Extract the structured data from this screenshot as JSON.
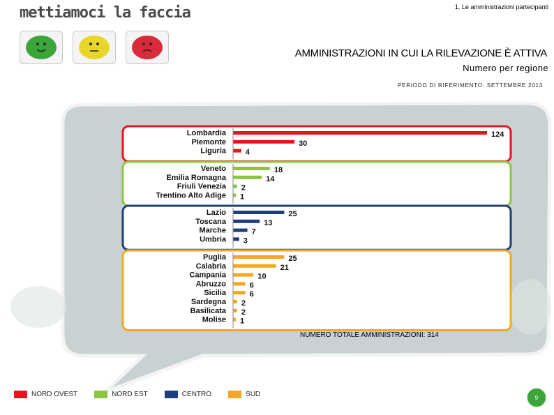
{
  "header": {
    "logo_text": "mettiamoci la faccia",
    "section_label": "1. Le amministrazioni partecipanti",
    "title": "AMMINISTRAZIONI IN CUI LA RILEVAZIONE È ATTIVA",
    "subtitle": "Numero per regione",
    "period": "PERIODO DI RIFERIMENTO: SETTEMBRE 2013"
  },
  "smileys": [
    {
      "name": "green-smiley-icon",
      "color": "#3aa63a"
    },
    {
      "name": "yellow-smiley-icon",
      "color": "#e8d62a"
    },
    {
      "name": "red-smiley-icon",
      "color": "#d92a3a"
    }
  ],
  "chart_data": {
    "type": "bar",
    "orientation": "horizontal",
    "xlim": [
      0,
      124
    ],
    "groups": [
      {
        "name": "NORD OVEST",
        "color": "#e3161e",
        "categories": [
          "Lombardia",
          "Piemonte",
          "Liguria"
        ],
        "values": [
          124,
          30,
          4
        ]
      },
      {
        "name": "NORD EST",
        "color": "#8cc63f",
        "categories": [
          "Veneto",
          "Emilia Romagna",
          "Friuli Venezia",
          "Trentino Alto Adige"
        ],
        "values": [
          18,
          14,
          2,
          1
        ]
      },
      {
        "name": "CENTRO",
        "color": "#1f3f7a",
        "categories": [
          "Lazio",
          "Toscana",
          "Marche",
          "Umbria"
        ],
        "values": [
          25,
          13,
          7,
          3
        ]
      },
      {
        "name": "SUD",
        "color": "#f5a623",
        "categories": [
          "Puglia",
          "Calabria",
          "Campania",
          "Abruzzo",
          "Sicilia",
          "Sardegna",
          "Basilicata",
          "Molise"
        ],
        "values": [
          25,
          21,
          10,
          6,
          6,
          2,
          2,
          1
        ]
      }
    ]
  },
  "total_label": "NUMERO TOTALE AMMINISTRAZIONI: 314",
  "legend": [
    {
      "label": "NORD OVEST",
      "color": "#e3161e"
    },
    {
      "label": "NORD EST",
      "color": "#8cc63f"
    },
    {
      "label": "CENTRO",
      "color": "#1f3f7a"
    },
    {
      "label": "SUD",
      "color": "#f5a623"
    }
  ],
  "page_number": "9"
}
